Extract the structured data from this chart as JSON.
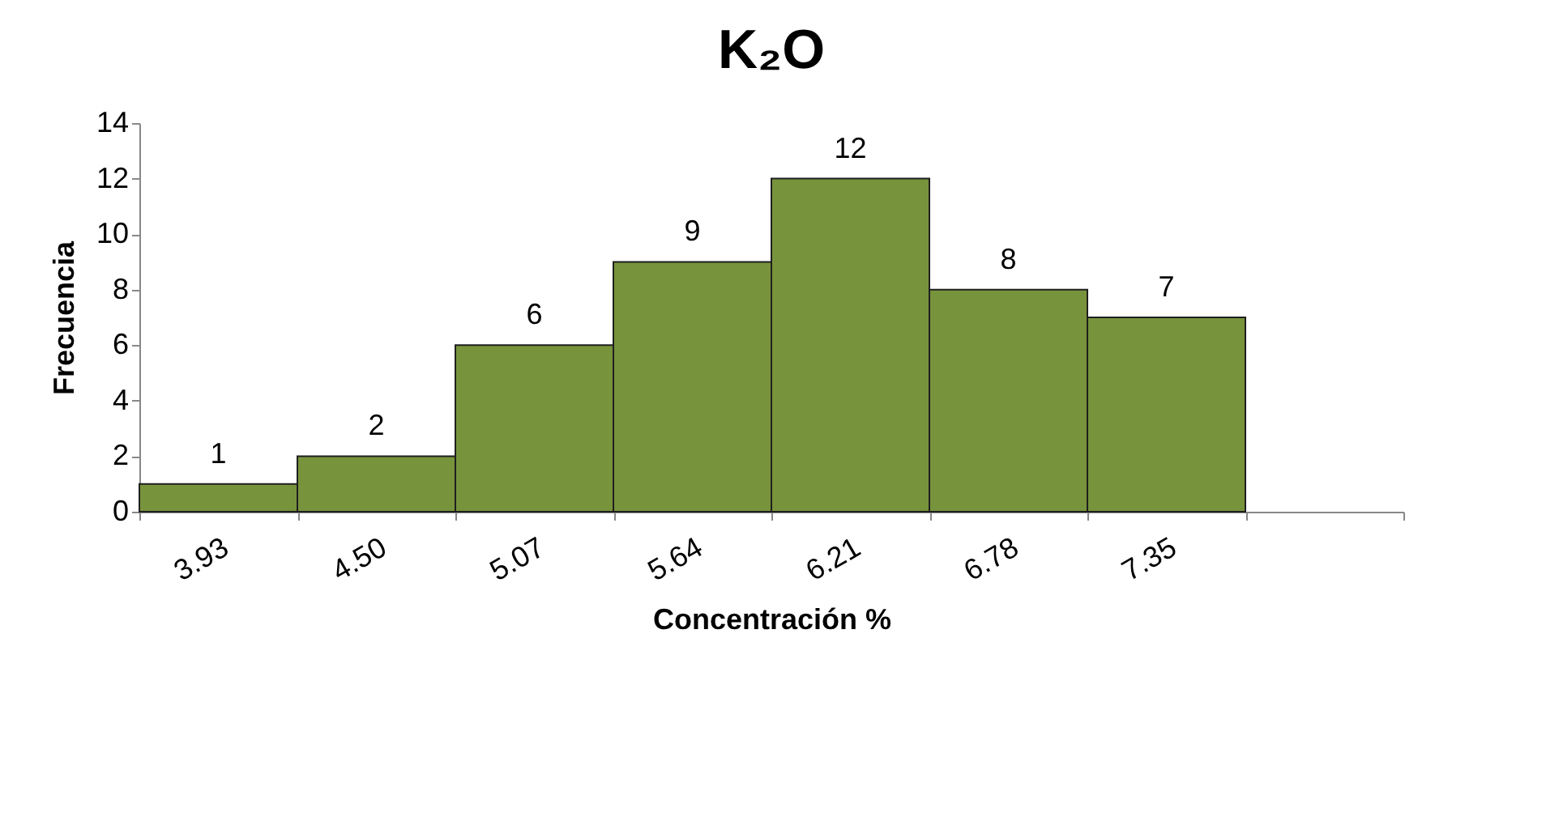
{
  "chart_data": {
    "type": "bar",
    "title": "K₂O",
    "xlabel": "Concentración %",
    "ylabel": "Frecuencia",
    "categories": [
      "3.93",
      "4.50",
      "5.07",
      "5.64",
      "6.21",
      "6.78",
      "7.35",
      null
    ],
    "values": [
      1,
      2,
      6,
      9,
      12,
      8,
      7,
      null
    ],
    "color": "#77933c",
    "ylim": [
      0,
      14
    ],
    "yticks": [
      0,
      2,
      4,
      6,
      8,
      10,
      12,
      14
    ],
    "grid": false,
    "data_labels": true
  }
}
